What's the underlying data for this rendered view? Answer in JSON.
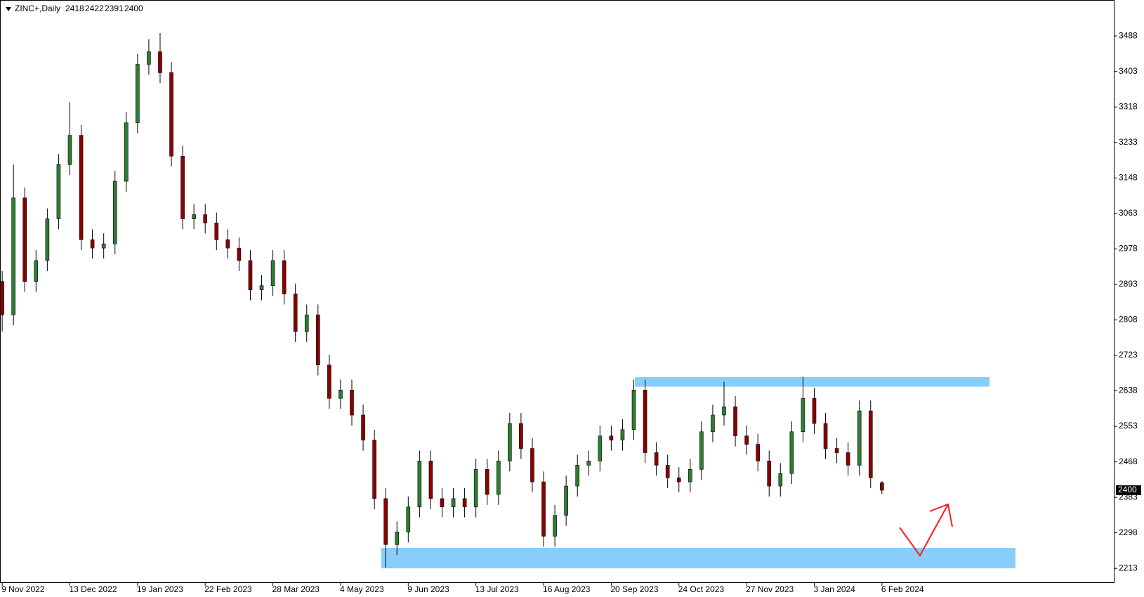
{
  "chart_data": {
    "type": "candlestick",
    "title": "ZINC+,Daily",
    "categories": [
      "9 Nov 2022",
      null,
      null,
      null,
      null,
      null,
      "13 Dec 2022",
      null,
      null,
      null,
      null,
      null,
      "19 Jan 2023",
      null,
      null,
      null,
      null,
      null,
      "22 Feb 2023",
      null,
      null,
      null,
      null,
      null,
      "28 Mar 2023",
      null,
      null,
      null,
      null,
      null,
      "4 May 2023",
      null,
      null,
      null,
      null,
      null,
      "9 Jun 2023",
      null,
      null,
      null,
      null,
      null,
      "13 Jul 2023",
      null,
      null,
      null,
      null,
      null,
      "16 Aug 2023",
      null,
      null,
      null,
      null,
      null,
      "20 Sep 2023",
      null,
      null,
      null,
      null,
      null,
      "24 Oct 2023",
      null,
      null,
      null,
      null,
      null,
      "27 Nov 2023",
      null,
      null,
      null,
      null,
      null,
      "3 Jan 2024",
      null,
      null,
      null,
      null,
      null,
      "6 Feb 2024"
    ],
    "open": [
      2900,
      2820,
      3100,
      2900,
      2950,
      3050,
      3180,
      3250,
      3000,
      2980,
      2990,
      3140,
      3280,
      3420,
      3450,
      3400,
      3200,
      3050,
      3060,
      3040,
      3000,
      2980,
      2950,
      2880,
      2890,
      2950,
      2870,
      2780,
      2820,
      2700,
      2620,
      2640,
      2580,
      2520,
      2380,
      2270,
      2300,
      2360,
      2470,
      2380,
      2360,
      2380,
      2360,
      2450,
      2390,
      2470,
      2560,
      2500,
      2420,
      2290,
      2340,
      2410,
      2460,
      2470,
      2530,
      2520,
      2545,
      2640,
      2490,
      2460,
      2430,
      2420,
      2450,
      2540,
      2580,
      2600,
      2530,
      2510,
      2470,
      2410,
      2440,
      2540,
      2620,
      2560,
      2500,
      2490,
      2460,
      2590,
      2418
    ],
    "high": [
      2925,
      3180,
      3125,
      2975,
      3075,
      3205,
      3330,
      3275,
      3025,
      3015,
      3165,
      3305,
      3445,
      3480,
      3495,
      3425,
      3225,
      3085,
      3085,
      3065,
      3025,
      3005,
      2975,
      2915,
      2975,
      2975,
      2895,
      2845,
      2845,
      2725,
      2665,
      2665,
      2605,
      2545,
      2405,
      2325,
      2385,
      2495,
      2495,
      2405,
      2405,
      2405,
      2475,
      2475,
      2495,
      2585,
      2585,
      2525,
      2445,
      2365,
      2435,
      2485,
      2495,
      2555,
      2555,
      2570,
      2665,
      2665,
      2515,
      2485,
      2455,
      2475,
      2565,
      2605,
      2660,
      2625,
      2555,
      2535,
      2495,
      2465,
      2565,
      2672,
      2645,
      2585,
      2525,
      2515,
      2615,
      2615,
      2422
    ],
    "low": [
      2780,
      2795,
      2875,
      2875,
      2925,
      3025,
      3155,
      2975,
      2955,
      2955,
      2965,
      3115,
      3255,
      3395,
      3375,
      3175,
      3025,
      3025,
      3015,
      2975,
      2955,
      2925,
      2855,
      2855,
      2865,
      2845,
      2755,
      2755,
      2675,
      2595,
      2595,
      2555,
      2495,
      2355,
      2215,
      2245,
      2275,
      2335,
      2355,
      2335,
      2335,
      2335,
      2335,
      2365,
      2365,
      2445,
      2475,
      2395,
      2265,
      2265,
      2315,
      2385,
      2435,
      2445,
      2495,
      2495,
      2520,
      2465,
      2435,
      2405,
      2395,
      2395,
      2425,
      2515,
      2555,
      2505,
      2485,
      2445,
      2385,
      2385,
      2415,
      2515,
      2535,
      2475,
      2465,
      2435,
      2435,
      2405,
      2391
    ],
    "close": [
      2820,
      3100,
      2900,
      2950,
      3050,
      3180,
      3250,
      3000,
      2980,
      2990,
      3140,
      3280,
      3420,
      3450,
      3400,
      3200,
      3050,
      3060,
      3040,
      3000,
      2980,
      2950,
      2880,
      2890,
      2950,
      2870,
      2780,
      2820,
      2700,
      2620,
      2640,
      2580,
      2520,
      2380,
      2270,
      2300,
      2360,
      2470,
      2380,
      2360,
      2380,
      2360,
      2450,
      2390,
      2470,
      2560,
      2500,
      2420,
      2290,
      2340,
      2410,
      2460,
      2470,
      2530,
      2520,
      2545,
      2640,
      2490,
      2460,
      2430,
      2420,
      2450,
      2540,
      2580,
      2600,
      2530,
      2510,
      2470,
      2410,
      2440,
      2540,
      2620,
      2560,
      2500,
      2490,
      2460,
      2590,
      2430,
      2400
    ],
    "up_color": "#2e7d32",
    "down_color": "#8b0000",
    "zones": [
      {
        "top": 2671,
        "bottom": 2648
      },
      {
        "top": 2262,
        "bottom": 2213
      }
    ],
    "zone_color": "#87cefa",
    "ylim": [
      2178,
      3574
    ],
    "yticks": [
      3488,
      3403,
      3318,
      3233,
      3148,
      3063,
      2978,
      2893,
      2808,
      2723,
      2638,
      2553,
      2468,
      2383,
      2298,
      2213
    ]
  }
}
